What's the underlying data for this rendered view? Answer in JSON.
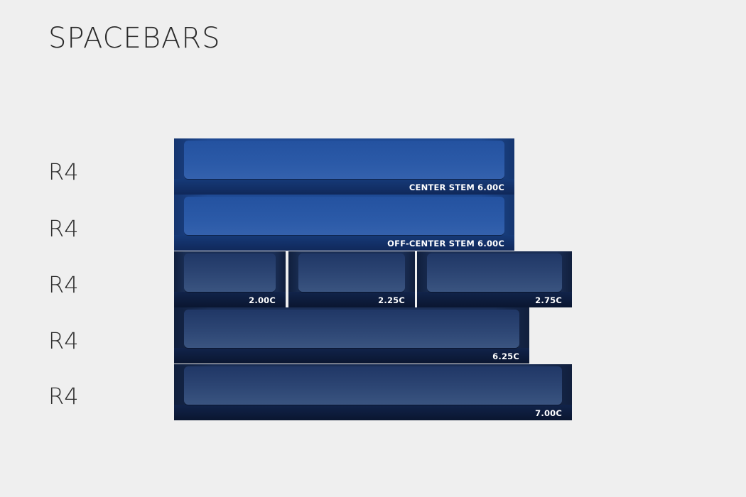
{
  "title": "SPACEBARS",
  "rows": [
    {
      "profile": "R4"
    },
    {
      "profile": "R4"
    },
    {
      "profile": "R4"
    },
    {
      "profile": "R4"
    },
    {
      "profile": "R4"
    }
  ],
  "keys": {
    "center_stem": "CENTER STEM 6.00C",
    "off_center_stem": "OFF-CENTER STEM 6.00C",
    "k200": "2.00C",
    "k225": "2.25C",
    "k275": "2.75C",
    "k625": "6.25C",
    "k700": "7.00C"
  },
  "colors": {
    "background": "#efefef",
    "bright_blue": "#2452a0",
    "navy": "#1a2e55",
    "label_text": "#ffffff"
  }
}
